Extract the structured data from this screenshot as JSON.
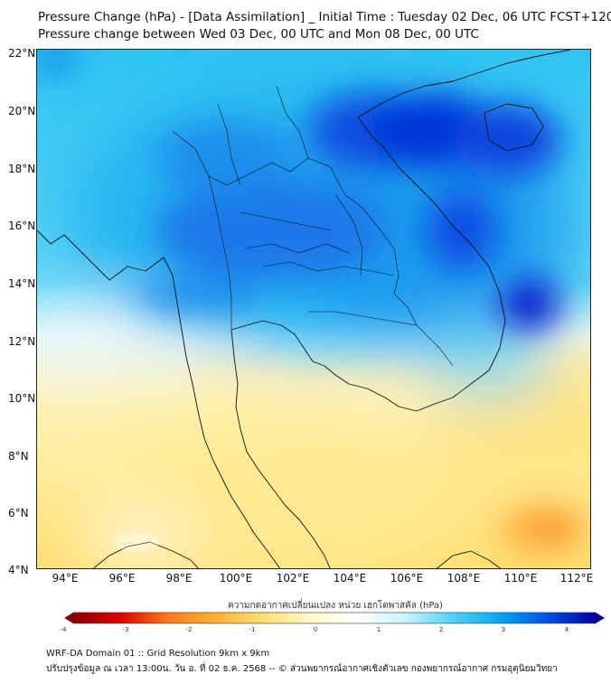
{
  "title_line1": "Pressure Change (hPa) - [Data Assimilation] _ Initial Time : Tuesday 02 Dec, 06 UTC FCST+120",
  "title_line2": "Pressure change between Wed 03 Dec, 00 UTC and Mon 08 Dec, 00 UTC",
  "map": {
    "lat_labels": [
      "22°N",
      "20°N",
      "18°N",
      "16°N",
      "14°N",
      "12°N",
      "10°N",
      "8°N",
      "6°N",
      "4°N"
    ],
    "lon_labels": [
      "94°E",
      "96°E",
      "98°E",
      "100°E",
      "102°E",
      "104°E",
      "106°E",
      "108°E",
      "110°E",
      "112°E"
    ],
    "extent": {
      "lon_min": 93,
      "lon_max": 112.5,
      "lat_min": 4,
      "lat_max": 22
    }
  },
  "colorbar": {
    "label": "ความกดอากาศเปลี่ยนแปลง หน่วย เฮกโตพาสคัล (hPa)",
    "ticks": [
      "-4",
      "-3",
      "-2",
      "-1",
      "0",
      "1",
      "2",
      "3",
      "4"
    ],
    "min": -4,
    "max": 4,
    "colors": [
      "#8b0000",
      "#e00000",
      "#ff7a1a",
      "#ffb030",
      "#ffe070",
      "#fff8c8",
      "#ffffff",
      "#c8f4ff",
      "#4fd2f5",
      "#00a8f0",
      "#0050e8",
      "#0000a0"
    ]
  },
  "footer_line1": "WRF-DA Domain 01 :: Grid Resolution 9km x 9km",
  "footer_line2": "ปรับปรุงข้อมูล ณ เวลา 13:00น. วัน อ. ที่ 02 ธ.ค. 2568 -- © ส่วนพยากรณ์อากาศเชิงตัวเลข กองพยากรณ์อากาศ กรมอุตุนิยมวิทยา"
}
